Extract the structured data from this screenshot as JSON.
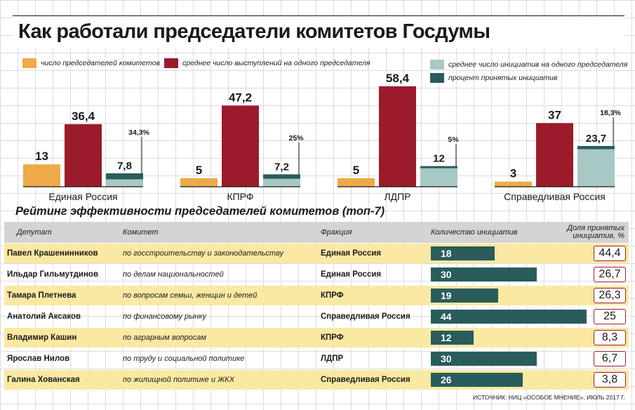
{
  "title": "Как работали председатели комитетов Госдумы",
  "colors": {
    "chairs": "#eeaa48",
    "speeches": "#9b1b2b",
    "initiatives": "#a7c8c4",
    "accepted": "#2a5c5c",
    "share_border": "#a01e2c",
    "row_highlight": "#fae9a2"
  },
  "chart_data": {
    "type": "bar",
    "categories": [
      "Единая Россия",
      "КПРФ",
      "ЛДПР",
      "Справедливая Россия"
    ],
    "series": [
      {
        "name": "число председателей комитетов",
        "values": [
          13,
          5,
          5,
          3
        ],
        "labels": [
          "13",
          "5",
          "5",
          "3"
        ]
      },
      {
        "name": "среднее число выступлений на одного председателя",
        "values": [
          36.4,
          47.2,
          58.4,
          37
        ],
        "labels": [
          "36,4",
          "47,2",
          "58,4",
          "37"
        ]
      },
      {
        "name": "среднее число инициатив на одного председателя",
        "values": [
          7.8,
          7.2,
          12,
          23.7
        ],
        "labels": [
          "7,8",
          "7,2",
          "12",
          "23,7"
        ]
      },
      {
        "name": "процент принятых инициатив",
        "values": [
          34.3,
          25,
          5,
          18.3
        ],
        "labels": [
          "34,3%",
          "25%",
          "5%",
          "18,3%"
        ]
      }
    ]
  },
  "rating": {
    "title": "Рейтинг эффективности председателей комитетов (топ-7)",
    "headers": {
      "deputy": "Депутат",
      "committee": "Комитет",
      "faction": "Фракция",
      "initiatives": "Количество инициатив",
      "share": "Доля принятых инициатив, %"
    },
    "max_initiatives": 44,
    "rows": [
      {
        "deputy": "Павел Крашенинников",
        "committee": "по госстроительству и законодательству",
        "faction": "Единая Россия",
        "initiatives": 18,
        "initiatives_label": "18",
        "share": "44,4"
      },
      {
        "deputy": "Ильдар Гильмутдинов",
        "committee": "по делам национальностей",
        "faction": "Единая Россия",
        "initiatives": 30,
        "initiatives_label": "30",
        "share": "26,7"
      },
      {
        "deputy": "Тамара Плетнева",
        "committee": "по вопросам семьи, женщин и детей",
        "faction": "КПРФ",
        "initiatives": 19,
        "initiatives_label": "19",
        "share": "26,3"
      },
      {
        "deputy": "Анатолий Аксаков",
        "committee": "по финансовому рынку",
        "faction": "Справедливая Россия",
        "initiatives": 44,
        "initiatives_label": "44",
        "share": "25"
      },
      {
        "deputy": "Владимир Кашин",
        "committee": "по аграрным вопросам",
        "faction": "КПРФ",
        "initiatives": 12,
        "initiatives_label": "12",
        "share": "8,3"
      },
      {
        "deputy": "Ярослав Нилов",
        "committee": "по труду и социальной политике",
        "faction": "ЛДПР",
        "initiatives": 30,
        "initiatives_label": "30",
        "share": "6,7"
      },
      {
        "deputy": "Галина Хованская",
        "committee": "по жилищной политике и ЖКХ",
        "faction": "Справедливая Россия",
        "initiatives": 26,
        "initiatives_label": "26",
        "share": "3,8"
      }
    ]
  },
  "source": "ИСТОЧНИК: НИЦ «ОСОБОЕ МНЕНИЕ», ИЮЛЬ 2017 Г."
}
